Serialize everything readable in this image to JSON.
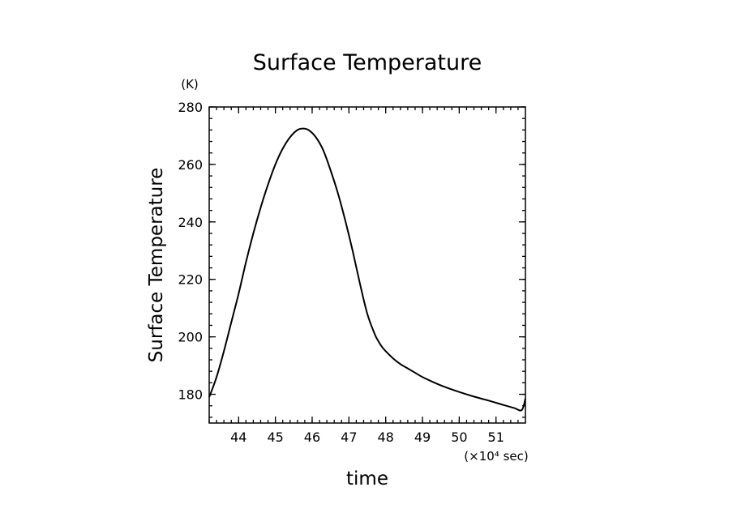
{
  "chart_data": {
    "type": "line",
    "title": "Surface Temperature",
    "xlabel": "time",
    "ylabel": "Surface Temperature",
    "x_unit": "(×10⁴ sec)",
    "y_unit": "(K)",
    "xlim": [
      43.2,
      51.8
    ],
    "ylim": [
      170,
      280
    ],
    "x_ticks": [
      44,
      45,
      46,
      47,
      48,
      49,
      50,
      51
    ],
    "y_ticks": [
      180,
      200,
      220,
      240,
      260,
      280
    ],
    "x_minor_step": 0.2,
    "y_minor_step": 4,
    "grid": false,
    "line_color": "#000000",
    "series": [
      {
        "x": [
          43.2,
          43.4,
          43.6,
          43.8,
          44.0,
          44.2,
          44.4,
          44.6,
          44.8,
          45.0,
          45.2,
          45.4,
          45.6,
          45.75,
          45.9,
          46.1,
          46.3,
          46.5,
          46.7,
          46.9,
          47.1,
          47.3,
          47.5,
          47.7,
          47.8,
          47.9,
          48.0,
          48.2,
          48.4,
          48.6,
          48.8,
          49.0,
          49.3,
          49.6,
          50.0,
          50.4,
          50.8,
          51.2,
          51.5,
          51.7,
          51.8
        ],
        "y": [
          179,
          186,
          195,
          205,
          215,
          226,
          236,
          245,
          253,
          260,
          265.5,
          269.5,
          272,
          272.5,
          272,
          269.5,
          265,
          258,
          250,
          240.5,
          230,
          218.5,
          208,
          201,
          198.5,
          196.5,
          195,
          192.5,
          190.5,
          189,
          187.5,
          186,
          184.2,
          182.6,
          180.8,
          179.2,
          177.8,
          176.3,
          175.2,
          174.5,
          178.5
        ]
      }
    ]
  }
}
